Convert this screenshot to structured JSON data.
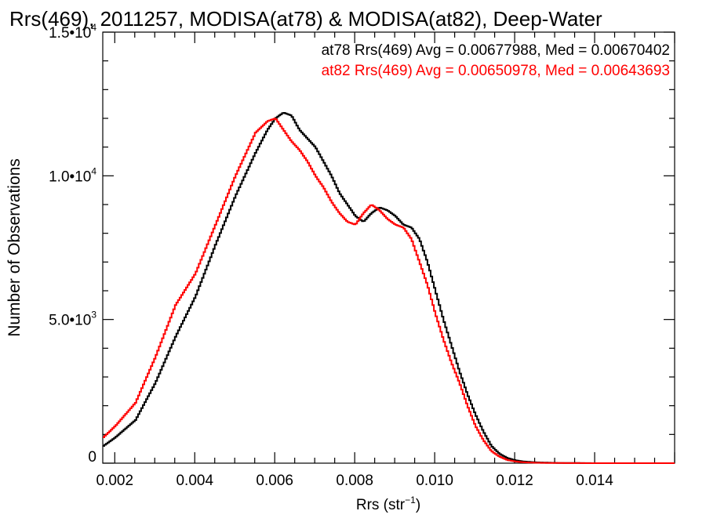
{
  "chart_data": {
    "type": "line",
    "title": "Rrs(469), 2011257, MODISA(at78) & MODISA(at82), Deep-Water",
    "xlabel": "Rrs (str",
    "xlabel_sup": "−1",
    "xlabel_close": ")",
    "ylabel": "Number of Observations",
    "xlim": [
      0.0017,
      0.016
    ],
    "ylim": [
      0,
      15000
    ],
    "x_ticks": [
      {
        "value": 0.002,
        "label": "0.002"
      },
      {
        "value": 0.004,
        "label": "0.004"
      },
      {
        "value": 0.006,
        "label": "0.006"
      },
      {
        "value": 0.008,
        "label": "0.008"
      },
      {
        "value": 0.01,
        "label": "0.010"
      },
      {
        "value": 0.012,
        "label": "0.012"
      },
      {
        "value": 0.014,
        "label": "0.014"
      }
    ],
    "y_ticks": [
      {
        "value": 0,
        "base": "0",
        "exp": ""
      },
      {
        "value": 5000,
        "base": "5.0•10",
        "exp": "3"
      },
      {
        "value": 10000,
        "base": "1.0•10",
        "exp": "4"
      },
      {
        "value": 15000,
        "base": "1.5•10",
        "exp": "4"
      }
    ],
    "legend": [
      {
        "text": "at78 Rrs(469) Avg = 0.00677988, Med = 0.00670402",
        "color": "#000000"
      },
      {
        "text": "at82 Rrs(469) Avg = 0.00650978, Med = 0.00643693",
        "color": "#ff0000"
      }
    ],
    "legend_placement": "top-right",
    "series": [
      {
        "color": "#000000",
        "x": [
          0.0017,
          0.002,
          0.0025,
          0.003,
          0.0035,
          0.004,
          0.0045,
          0.005,
          0.0055,
          0.0058,
          0.006,
          0.0062,
          0.0064,
          0.0066,
          0.0068,
          0.007,
          0.0072,
          0.0074,
          0.0076,
          0.0078,
          0.008,
          0.0082,
          0.0084,
          0.0086,
          0.0088,
          0.009,
          0.0092,
          0.0094,
          0.0096,
          0.0098,
          0.01,
          0.0102,
          0.0104,
          0.0106,
          0.0108,
          0.011,
          0.0112,
          0.0114,
          0.0116,
          0.0118,
          0.012,
          0.0122,
          0.0125,
          0.013,
          0.014,
          0.015,
          0.016
        ],
        "y": [
          600,
          900,
          1500,
          2800,
          4400,
          5800,
          7600,
          9300,
          10800,
          11600,
          12000,
          12200,
          12100,
          11600,
          11300,
          11000,
          10500,
          10000,
          9400,
          9000,
          8600,
          8400,
          8700,
          8900,
          8800,
          8600,
          8300,
          8200,
          7800,
          7000,
          6000,
          5000,
          4100,
          3200,
          2400,
          1700,
          1100,
          600,
          330,
          180,
          100,
          60,
          30,
          10,
          0,
          0,
          0
        ]
      },
      {
        "color": "#ff0000",
        "x": [
          0.0017,
          0.002,
          0.0025,
          0.003,
          0.0035,
          0.004,
          0.0045,
          0.005,
          0.0055,
          0.0058,
          0.006,
          0.0062,
          0.0064,
          0.0066,
          0.0068,
          0.007,
          0.0072,
          0.0074,
          0.0076,
          0.0078,
          0.008,
          0.0082,
          0.0084,
          0.0086,
          0.0088,
          0.009,
          0.0092,
          0.0094,
          0.0096,
          0.0098,
          0.01,
          0.0102,
          0.0104,
          0.0106,
          0.0108,
          0.011,
          0.0112,
          0.0114,
          0.0116,
          0.0118,
          0.012,
          0.0122,
          0.0125,
          0.013,
          0.014,
          0.015,
          0.016
        ],
        "y": [
          900,
          1300,
          2100,
          3700,
          5500,
          6600,
          8300,
          10000,
          11500,
          11900,
          12000,
          11600,
          11200,
          10900,
          10500,
          10000,
          9600,
          9100,
          8700,
          8400,
          8300,
          8700,
          9000,
          8800,
          8500,
          8300,
          8200,
          7800,
          7000,
          6200,
          5200,
          4300,
          3500,
          2800,
          2000,
          1300,
          800,
          420,
          230,
          110,
          60,
          30,
          15,
          5,
          0,
          0,
          0
        ]
      }
    ]
  }
}
